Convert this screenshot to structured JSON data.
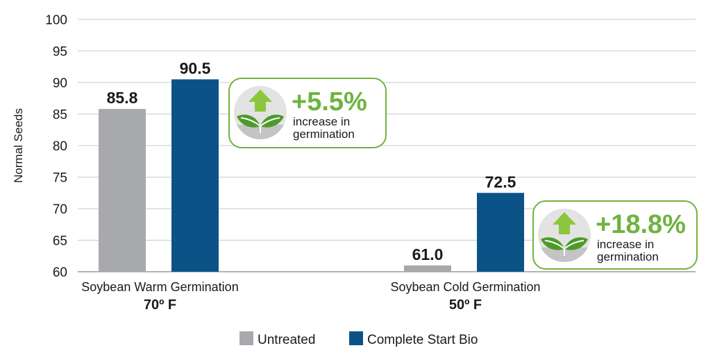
{
  "chart_data": {
    "type": "bar",
    "ylabel": "Normal Seeds",
    "ylim": [
      60,
      100
    ],
    "yticks": [
      60,
      65,
      70,
      75,
      80,
      85,
      90,
      95,
      100
    ],
    "grid": true,
    "categories": [
      {
        "name": "Soybean Warm Germination",
        "sub": "70º F"
      },
      {
        "name": "Soybean Cold Germination",
        "sub": "50º F"
      }
    ],
    "series": [
      {
        "name": "Untreated",
        "color": "#a7a9ac",
        "values": [
          85.8,
          61.0
        ],
        "labels": [
          "85.8",
          "61.0"
        ]
      },
      {
        "name": "Complete Start Bio",
        "color": "#0b5386",
        "values": [
          90.5,
          72.5
        ],
        "labels": [
          "90.5",
          "72.5"
        ]
      }
    ],
    "annotations": [
      {
        "value": "+5.5%",
        "line1": "increase in",
        "line2": "germination",
        "icon": "plant-arrow-up-icon"
      },
      {
        "value": "+18.8%",
        "line1": "increase in",
        "line2": "germination",
        "icon": "plant-arrow-up-icon"
      }
    ],
    "legend_position": "bottom-center",
    "accent_color": "#6fb33f"
  }
}
